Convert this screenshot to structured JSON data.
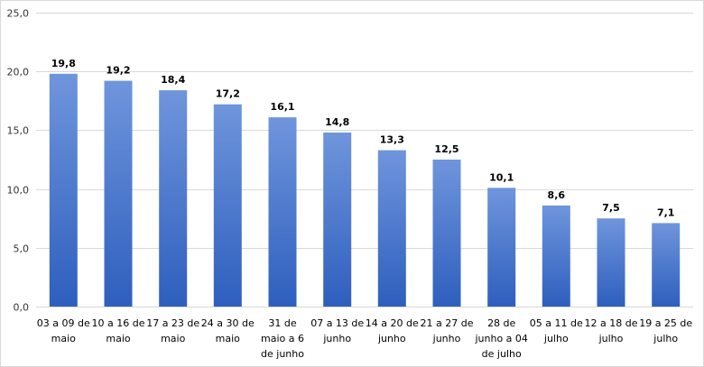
{
  "chart_data": {
    "type": "bar",
    "title": "",
    "xlabel": "",
    "ylabel": "",
    "ylim": [
      0,
      25
    ],
    "yticks": [
      "0,0",
      "5,0",
      "10,0",
      "15,0",
      "20,0",
      "25,0"
    ],
    "grid": true,
    "legend": "none",
    "bar_color_top": "#6f95dc",
    "bar_color_bottom": "#2e5fbe",
    "categories": [
      [
        "03 a 09 de",
        "maio"
      ],
      [
        "10 a 16 de",
        "maio"
      ],
      [
        "17 a 23 de",
        "maio"
      ],
      [
        "24 a 30 de",
        "maio"
      ],
      [
        "31 de",
        "maio a 6",
        "de junho"
      ],
      [
        "07 a 13 de",
        "junho"
      ],
      [
        "14 a 20 de",
        "junho"
      ],
      [
        "21 a 27 de",
        "junho"
      ],
      [
        "28 de",
        "junho a 04",
        "de julho"
      ],
      [
        "05 a 11 de",
        "julho"
      ],
      [
        "12 a 18 de",
        "julho"
      ],
      [
        "19 a 25 de",
        "julho"
      ]
    ],
    "values": [
      19.8,
      19.2,
      18.4,
      17.2,
      16.1,
      14.8,
      13.3,
      12.5,
      10.1,
      8.6,
      7.5,
      7.1
    ],
    "value_labels": [
      "19,8",
      "19,2",
      "18,4",
      "17,2",
      "16,1",
      "14,8",
      "13,3",
      "12,5",
      "10,1",
      "8,6",
      "7,5",
      "7,1"
    ]
  }
}
